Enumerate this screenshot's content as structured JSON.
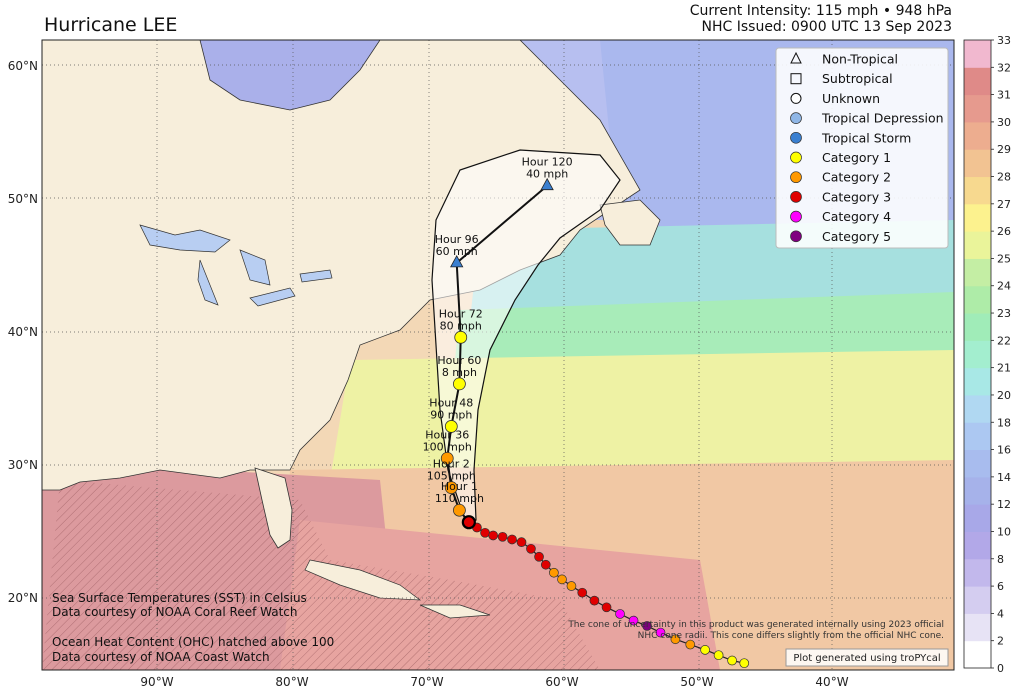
{
  "title": "Hurricane LEE",
  "intensity": {
    "current": "Current Intensity: 115 mph • 948 hPa",
    "issued": "NHC Issued: 0900 UTC 13 Sep 2023"
  },
  "axes": {
    "lon_labels": [
      "90°W",
      "80°W",
      "70°W",
      "60°W",
      "50°W",
      "40°W"
    ],
    "lat_labels": [
      "60°N",
      "50°N",
      "40°N",
      "30°N",
      "20°N"
    ]
  },
  "legend": [
    {
      "label": "Non-Tropical",
      "icon": "triangle-outline-icon",
      "color": "#ffffff"
    },
    {
      "label": "Subtropical",
      "icon": "square-outline-icon",
      "color": "#ffffff"
    },
    {
      "label": "Unknown",
      "icon": "circle-outline-icon",
      "color": "#ffffff"
    },
    {
      "label": "Tropical Depression",
      "icon": "circle-icon",
      "color": "#8fb6e6"
    },
    {
      "label": "Tropical Storm",
      "icon": "circle-icon",
      "color": "#3a7fd0"
    },
    {
      "label": "Category 1",
      "icon": "circle-icon",
      "color": "#ffff00"
    },
    {
      "label": "Category 2",
      "icon": "circle-icon",
      "color": "#ff9900"
    },
    {
      "label": "Category 3",
      "icon": "circle-icon",
      "color": "#e00000"
    },
    {
      "label": "Category 4",
      "icon": "circle-icon",
      "color": "#ff00ff"
    },
    {
      "label": "Category 5",
      "icon": "circle-icon",
      "color": "#800080"
    }
  ],
  "forecast_points": [
    {
      "hour_label": "Hour 120",
      "wind_label": "40 mph",
      "lon": -61.1,
      "lat": 51.0,
      "category": "non-tropical"
    },
    {
      "hour_label": "Hour 96",
      "wind_label": "60 mph",
      "lon": -67.8,
      "lat": 45.2,
      "category": "non-tropical"
    },
    {
      "hour_label": "Hour 72",
      "wind_label": "80 mph",
      "lon": -67.5,
      "lat": 39.6,
      "category": "category-1"
    },
    {
      "hour_label": "Hour 60",
      "wind_label": "8 mph",
      "lon": -67.6,
      "lat": 36.1,
      "category": "category-1"
    },
    {
      "hour_label": "Hour 48",
      "wind_label": "90 mph",
      "lon": -68.2,
      "lat": 32.9,
      "category": "category-1"
    },
    {
      "hour_label": "Hour 36",
      "wind_label": "100 mph",
      "lon": -68.5,
      "lat": 30.5,
      "category": "category-2"
    },
    {
      "hour_label": "Hour 2",
      "wind_label": "105 mph",
      "lon": -68.2,
      "lat": 28.3,
      "category": "category-2"
    },
    {
      "hour_label": "Hour 1",
      "wind_label": "110 mph",
      "lon": -67.6,
      "lat": 26.6,
      "category": "category-2"
    }
  ],
  "current_position": {
    "lon": -66.9,
    "lat": 25.7
  },
  "colorbar": {
    "ticks": [
      0,
      2,
      4,
      6,
      8,
      10,
      12,
      14,
      16,
      18,
      20,
      21,
      22,
      23,
      24,
      25,
      26,
      27,
      28,
      29,
      30,
      31,
      32,
      33
    ],
    "colors": [
      "#ffffff",
      "#e7e3f5",
      "#d4cdf0",
      "#c2b8ec",
      "#b2a8e8",
      "#a8a8e8",
      "#a6b2ea",
      "#a8bcee",
      "#acc8f2",
      "#b0d8f2",
      "#a8e8e6",
      "#a3eecf",
      "#a0ecb8",
      "#aeeca8",
      "#c4eea4",
      "#eaf49a",
      "#fcf28e",
      "#f7d98f",
      "#f2c392",
      "#edad8f",
      "#e69a8e",
      "#df8a88",
      "#f1b8cf"
    ]
  },
  "notes": {
    "sst_1": "Sea Surface Temperatures (SST) in Celsius",
    "sst_2": "Data courtesy of NOAA Coral Reef Watch",
    "ohc_1": "Ocean Heat Content (OHC) hatched above 100",
    "ohc_2": "Data courtesy of NOAA Coast Watch",
    "cone_1": "The cone of uncertainty in this product was generated internally using 2023 official",
    "cone_2": "NHC cone radii. This cone differs slightly from the official NHC cone.",
    "credit": "Plot generated using troPYcal"
  }
}
